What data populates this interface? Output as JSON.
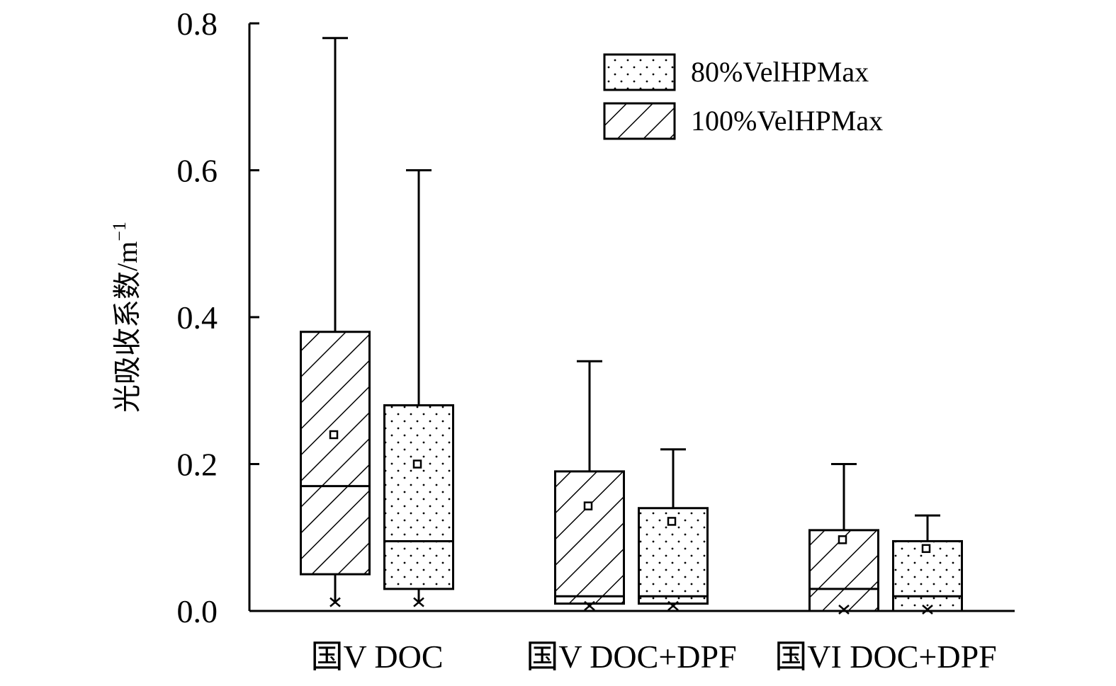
{
  "chart_data": {
    "type": "box",
    "title": "",
    "xlabel": "",
    "ylabel": "光吸收系数/m",
    "ylabel_superscript": "−1",
    "ylim": [
      0,
      0.8
    ],
    "yticks": [
      "0.0",
      "0.2",
      "0.4",
      "0.6",
      "0.8"
    ],
    "grid": false,
    "legend_position": "top-right",
    "categories": [
      "国V DOC",
      "国V DOC+DPF",
      "国VI DOC+DPF"
    ],
    "series": [
      {
        "name": "100%VelHPMax",
        "pattern": "diagonal-hatch",
        "boxes": [
          {
            "min": 0.01,
            "q1": 0.05,
            "median": 0.17,
            "q3": 0.38,
            "max": 0.78,
            "mean": 0.24
          },
          {
            "min": 0.005,
            "q1": 0.01,
            "median": 0.02,
            "q3": 0.19,
            "max": 0.34,
            "mean": 0.143
          },
          {
            "min": 0.0,
            "q1": 0.0,
            "median": 0.03,
            "q3": 0.11,
            "max": 0.2,
            "mean": 0.097
          }
        ]
      },
      {
        "name": "80%VelHPMax",
        "pattern": "dots",
        "boxes": [
          {
            "min": 0.01,
            "q1": 0.03,
            "median": 0.095,
            "q3": 0.28,
            "max": 0.6,
            "mean": 0.2
          },
          {
            "min": 0.005,
            "q1": 0.01,
            "median": 0.02,
            "q3": 0.14,
            "max": 0.22,
            "mean": 0.122
          },
          {
            "min": 0.0,
            "q1": 0.0,
            "median": 0.02,
            "q3": 0.095,
            "max": 0.13,
            "mean": 0.085
          }
        ]
      }
    ],
    "legend": [
      {
        "name": "80%VelHPMax",
        "pattern": "dots"
      },
      {
        "name": "100%VelHPMax",
        "pattern": "diagonal-hatch"
      }
    ]
  }
}
